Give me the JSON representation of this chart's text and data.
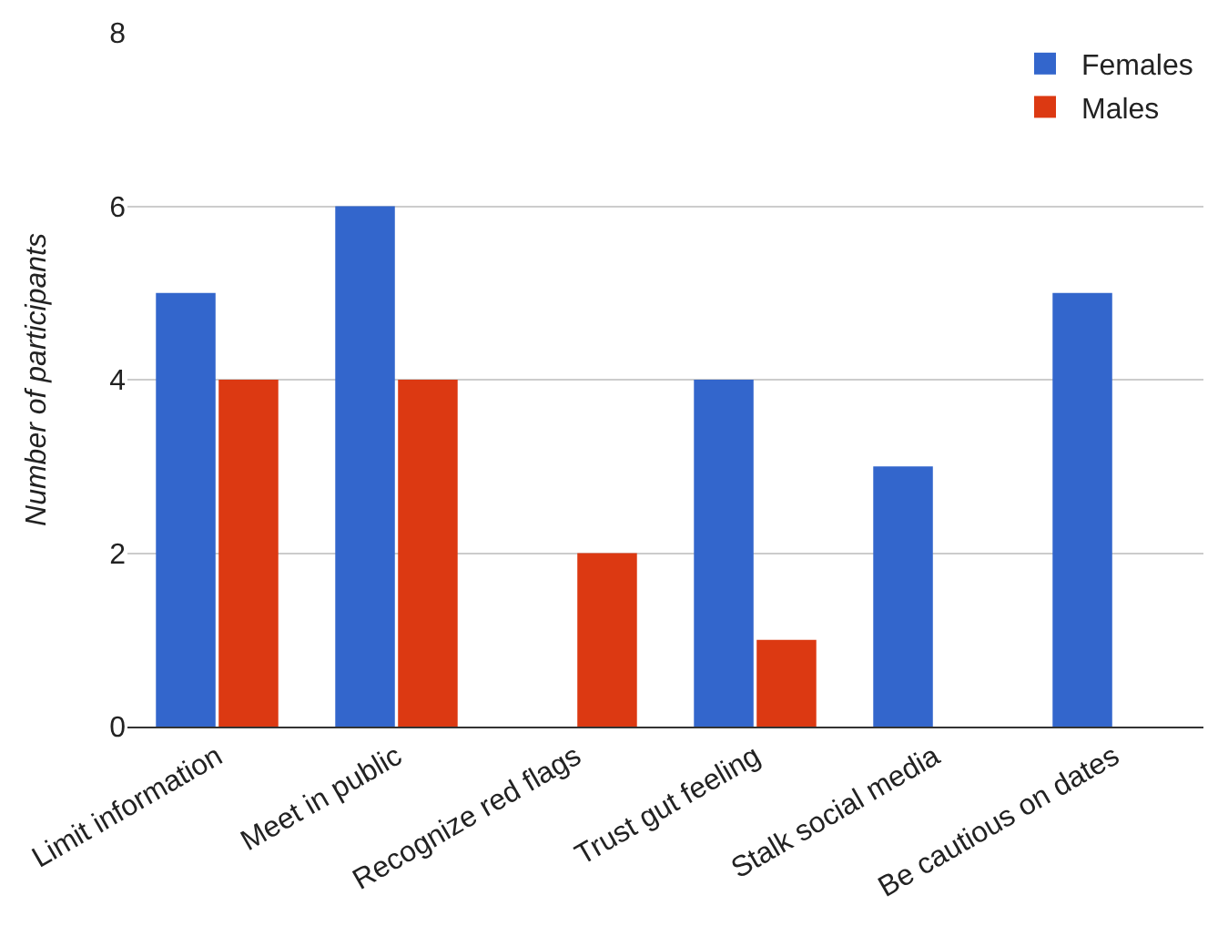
{
  "chart_data": {
    "type": "bar",
    "ylabel": "Number of participants",
    "categories": [
      "Limit information",
      "Meet in public",
      "Recognize red flags",
      "Trust gut feeling",
      "Stalk social media",
      "Be cautious on dates"
    ],
    "series": [
      {
        "name": "Females",
        "color": "#3366cc",
        "values": [
          5,
          6,
          0,
          4,
          3,
          5
        ]
      },
      {
        "name": "Males",
        "color": "#dc3912",
        "values": [
          4,
          4,
          2,
          1,
          0,
          0
        ]
      }
    ],
    "ylim": [
      0,
      8
    ],
    "yticks": [
      0,
      2,
      4,
      6,
      8
    ],
    "grid": "y",
    "legend": "top right"
  }
}
